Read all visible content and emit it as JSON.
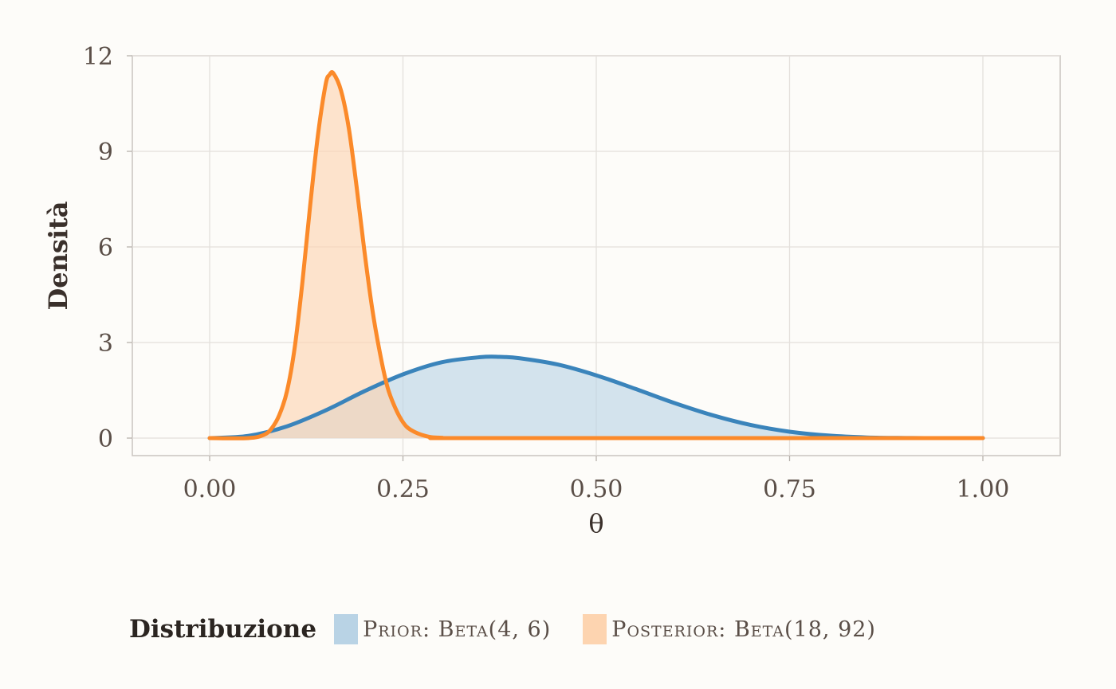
{
  "chart_data": {
    "type": "area",
    "xlabel": "θ",
    "ylabel": "Densità",
    "xlim": [
      -0.1,
      1.1
    ],
    "ylim": [
      -0.55,
      12.0
    ],
    "x_ticks": [
      0.0,
      0.25,
      0.5,
      0.75,
      1.0
    ],
    "x_tick_labels": [
      "0.00",
      "0.25",
      "0.50",
      "0.75",
      "1.00"
    ],
    "y_ticks": [
      0,
      3,
      6,
      9,
      12
    ],
    "y_tick_labels": [
      "0",
      "3",
      "6",
      "9",
      "12"
    ],
    "grid": true,
    "legend": {
      "title": "Distribuzione",
      "placement": "bottom",
      "entries": [
        "Prior: Beta(4, 6)",
        "Posterior: Beta(18, 92)"
      ]
    },
    "series": [
      {
        "name": "Prior: Beta(4, 6)",
        "line_color": "#3a84bb",
        "fill_color": "#b9d3e5",
        "x": [
          0.0,
          0.05,
          0.1,
          0.15,
          0.2,
          0.25,
          0.3,
          0.35,
          0.375,
          0.4,
          0.45,
          0.5,
          0.55,
          0.6,
          0.65,
          0.7,
          0.75,
          0.8,
          0.85,
          0.9,
          0.95,
          1.0
        ],
        "y": [
          0.0,
          0.07,
          0.37,
          0.87,
          1.47,
          2.0,
          2.38,
          2.54,
          2.55,
          2.51,
          2.31,
          1.97,
          1.55,
          1.11,
          0.72,
          0.41,
          0.2,
          0.08,
          0.02,
          0.004,
          0.0,
          0.0
        ]
      },
      {
        "name": "Posterior: Beta(18, 92)",
        "line_color": "#fb8a2a",
        "fill_color": "#fdd4b0",
        "x": [
          0.0,
          0.05,
          0.07,
          0.08,
          0.09,
          0.1,
          0.11,
          0.12,
          0.13,
          0.14,
          0.15,
          0.155,
          0.16,
          0.17,
          0.18,
          0.19,
          0.2,
          0.21,
          0.22,
          0.23,
          0.24,
          0.25,
          0.26,
          0.28,
          0.3,
          0.35,
          1.0
        ],
        "y": [
          0.0,
          0.0,
          0.1,
          0.3,
          0.72,
          1.47,
          2.84,
          4.9,
          7.3,
          9.5,
          11.1,
          11.4,
          11.45,
          10.9,
          9.72,
          7.9,
          5.9,
          4.1,
          2.7,
          1.6,
          0.95,
          0.5,
          0.26,
          0.06,
          0.01,
          0.0,
          0.0
        ]
      }
    ]
  }
}
